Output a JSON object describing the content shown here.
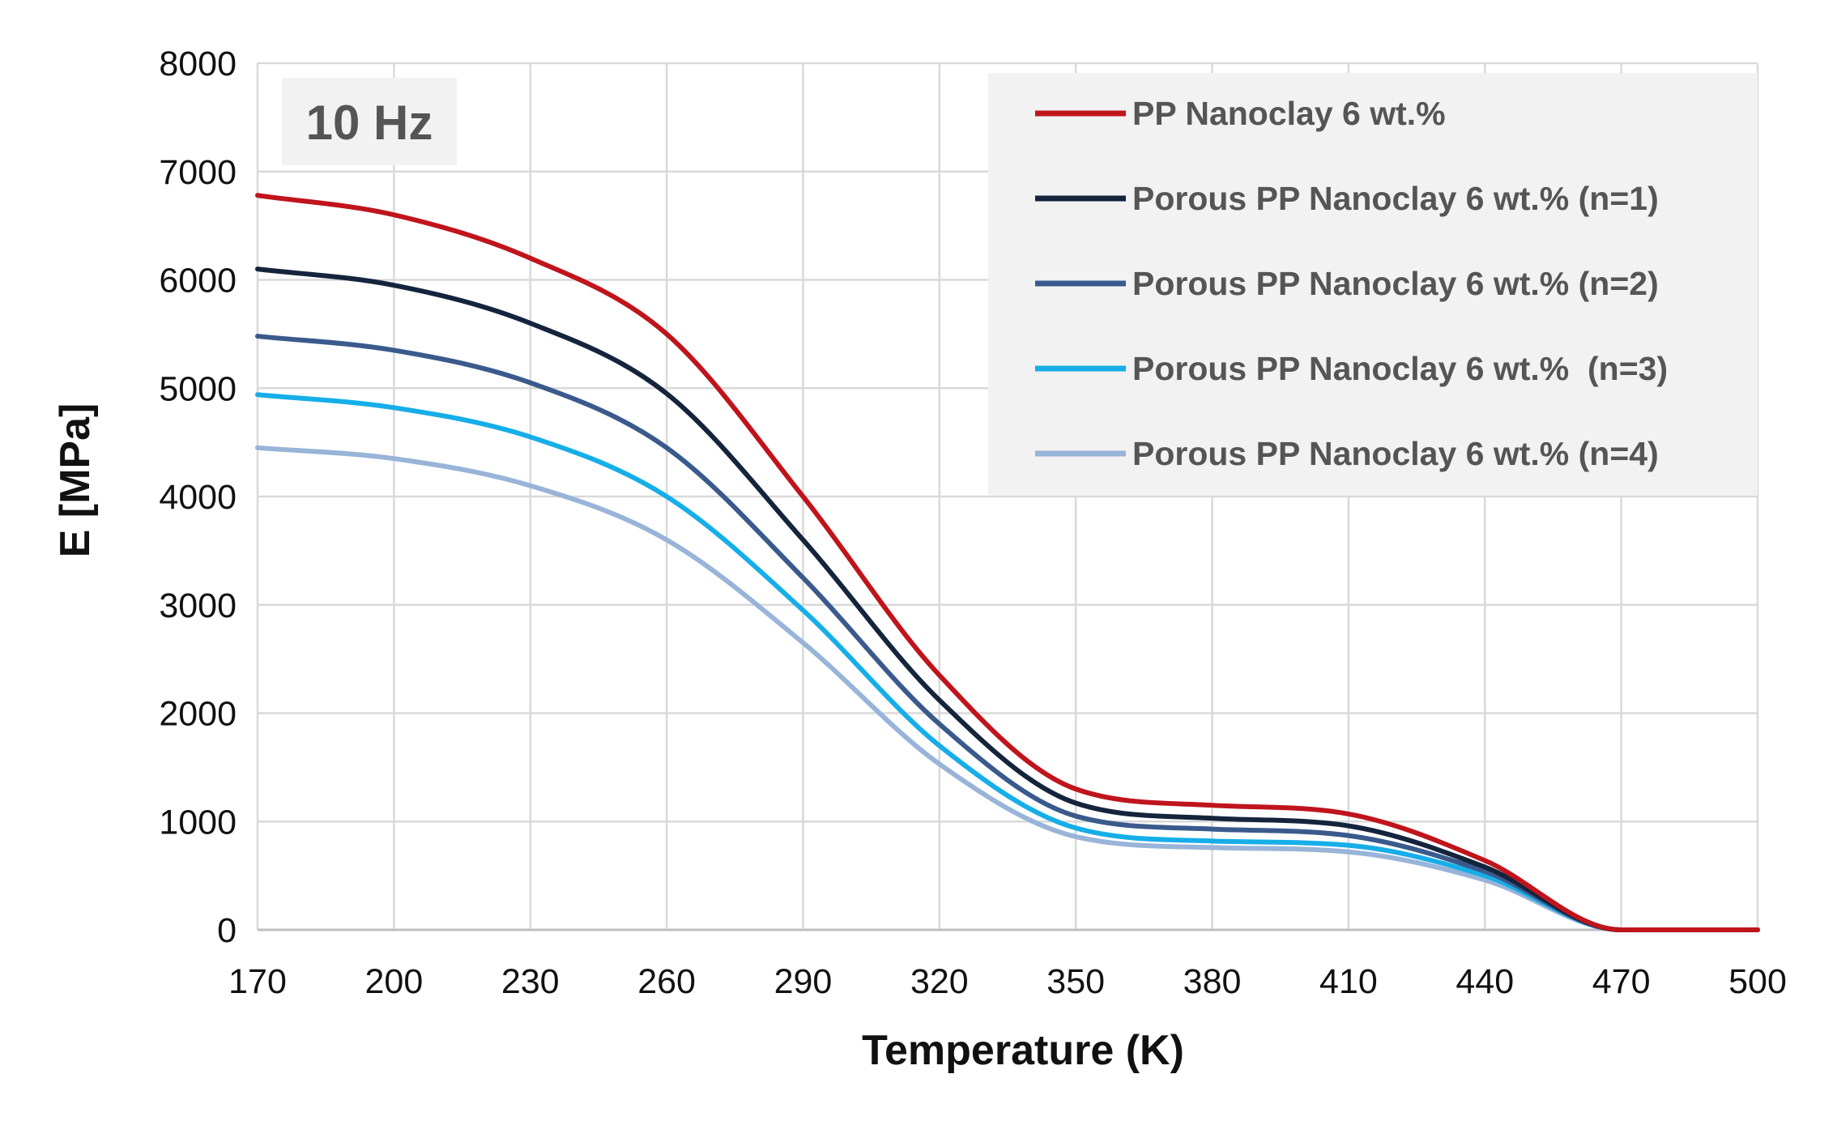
{
  "chart_data": {
    "type": "line",
    "annotation": "10 Hz",
    "xlabel": "Temperature (K)",
    "ylabel": "E [MPa]",
    "xlim": [
      170,
      500
    ],
    "ylim": [
      0,
      8000
    ],
    "xticks": [
      170,
      200,
      230,
      260,
      290,
      320,
      350,
      380,
      410,
      440,
      470,
      500
    ],
    "yticks": [
      0,
      1000,
      2000,
      3000,
      4000,
      5000,
      6000,
      7000,
      8000
    ],
    "grid": true,
    "legend_position": "top-right",
    "x": [
      170,
      200,
      230,
      260,
      290,
      320,
      350,
      380,
      410,
      440,
      470,
      500
    ],
    "series": [
      {
        "name": "PP Nanoclay 6 wt.%",
        "color": "#c0141c",
        "values": [
          6780,
          6600,
          6200,
          5500,
          4000,
          2350,
          1300,
          1150,
          1070,
          640,
          0,
          0
        ]
      },
      {
        "name": "Porous PP Nanoclay 6 wt.% (n=1)",
        "color": "#14243c",
        "values": [
          6100,
          5950,
          5600,
          4950,
          3600,
          2120,
          1170,
          1030,
          960,
          580,
          0,
          0
        ]
      },
      {
        "name": "Porous PP Nanoclay 6 wt.% (n=2)",
        "color": "#3a5a8c",
        "values": [
          5480,
          5350,
          5050,
          4450,
          3250,
          1900,
          1050,
          930,
          870,
          540,
          0,
          0
        ]
      },
      {
        "name": "Porous PP Nanoclay 6 wt.%  (n=3)",
        "color": "#16aee8",
        "values": [
          4940,
          4820,
          4550,
          4000,
          2950,
          1700,
          940,
          820,
          780,
          500,
          0,
          0
        ]
      },
      {
        "name": "Porous PP Nanoclay 6 wt.% (n=4)",
        "color": "#98b4d8",
        "values": [
          4450,
          4350,
          4100,
          3600,
          2650,
          1530,
          860,
          760,
          720,
          460,
          0,
          0
        ]
      }
    ]
  }
}
